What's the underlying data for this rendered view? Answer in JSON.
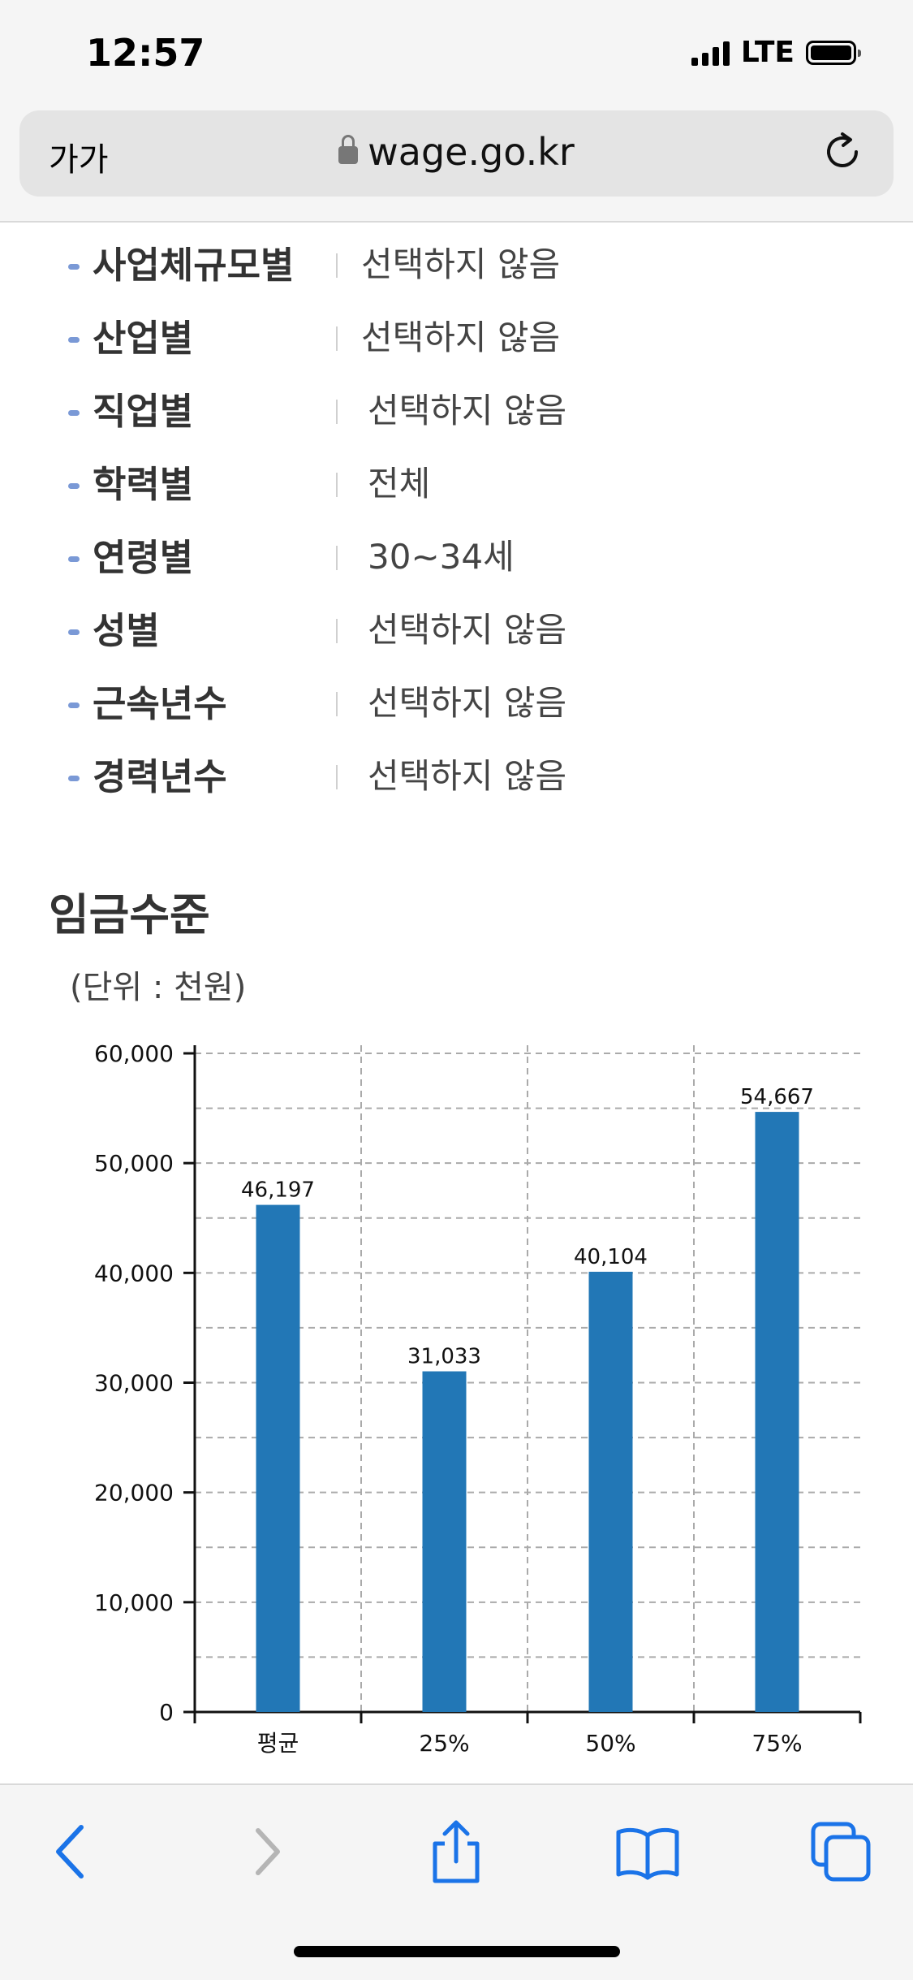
{
  "status_bar": {
    "time": "12:57",
    "network": "LTE"
  },
  "browser": {
    "text_size_button": "가가",
    "url": "wage.go.kr",
    "icons": {
      "lock": "lock-icon",
      "reload": "reload-icon"
    }
  },
  "filters": [
    {
      "label": "사업체규모별",
      "value": "선택하지 않음"
    },
    {
      "label": "산업별",
      "value": "선택하지 않음"
    },
    {
      "label": "직업별",
      "value": "선택하지 않음"
    },
    {
      "label": "학력별",
      "value": "전체"
    },
    {
      "label": "연령별",
      "value": "30~34세"
    },
    {
      "label": "성별",
      "value": "선택하지 않음"
    },
    {
      "label": "근속년수",
      "value": "선택하지 않음"
    },
    {
      "label": "경력년수",
      "value": "선택하지 않음"
    }
  ],
  "section": {
    "title": "임금수준",
    "unit": "(단위 : 천원)"
  },
  "chart_data": {
    "type": "bar",
    "categories": [
      "평균",
      "25%",
      "50%",
      "75%"
    ],
    "values": [
      46197,
      31033,
      40104,
      54667
    ],
    "value_labels": [
      "46,197",
      "31,033",
      "40,104",
      "54,667"
    ],
    "ylim": [
      0,
      60000
    ],
    "y_ticks": [
      "0",
      "10,000",
      "20,000",
      "30,000",
      "40,000",
      "50,000",
      "60,000"
    ],
    "grid": true,
    "bar_color": "#2277b6"
  },
  "toolbar": {
    "icons": [
      "back-icon",
      "forward-icon",
      "share-icon",
      "bookmarks-icon",
      "tabs-icon"
    ],
    "accent_color": "#1a73e8"
  }
}
